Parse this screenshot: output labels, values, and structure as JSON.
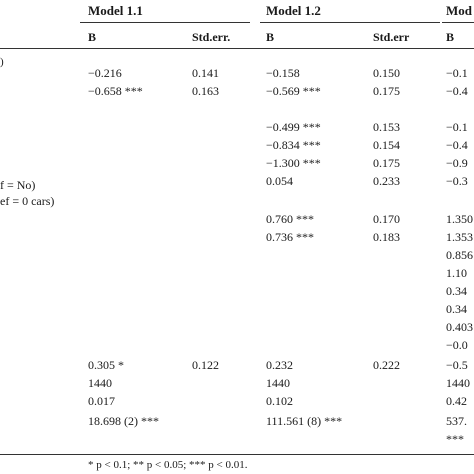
{
  "table": {
    "model_headers": [
      "Model 1.1",
      "Model 1.2",
      "Mod"
    ],
    "sub_headers": [
      "B",
      "Std.err.",
      "B",
      "Std.err",
      "B"
    ],
    "left_labels": [
      "f = No)",
      "ef = 0 cars)"
    ],
    "rows": [
      {
        "b1": "−0.216",
        "se1": "0.141",
        "b2": "−0.158",
        "se2": "0.150",
        "b3": "−0.1"
      },
      {
        "b1": "−0.658 ***",
        "se1": "0.163",
        "b2": "−0.569 ***",
        "se2": "0.175",
        "b3": "−0.4"
      },
      {
        "b1": "",
        "se1": "",
        "b2": "−0.499 ***",
        "se2": "0.153",
        "b3": "−0.1"
      },
      {
        "b1": "",
        "se1": "",
        "b2": "−0.834 ***",
        "se2": "0.154",
        "b3": "−0.4"
      },
      {
        "b1": "",
        "se1": "",
        "b2": "−1.300 ***",
        "se2": "0.175",
        "b3": "−0.9"
      },
      {
        "b1": "",
        "se1": "",
        "b2": "0.054",
        "se2": "0.233",
        "b3": "−0.3"
      },
      {
        "b1": "",
        "se1": "",
        "b2": "0.760 ***",
        "se2": "0.170",
        "b3": "1.350"
      },
      {
        "b1": "",
        "se1": "",
        "b2": "0.736 ***",
        "se2": "0.183",
        "b3": "1.353"
      },
      {
        "b3": "0.856"
      },
      {
        "b3": "1.10"
      },
      {
        "b3": "0.34"
      },
      {
        "b3": "0.34"
      },
      {
        "b3": "0.403"
      },
      {
        "b3": "−0.0"
      },
      {
        "b1": "0.305 *",
        "se1": "0.122",
        "b2": "0.232",
        "se2": "0.222",
        "b3": "−0.5"
      },
      {
        "b1": "1440",
        "b2": "1440",
        "b3": "1440"
      },
      {
        "b1": "0.017",
        "b2": "0.102",
        "b3": "0.42"
      },
      {
        "b1": "18.698 (2) ***",
        "b2": "111.561 (8) ***",
        "b3": "537."
      },
      {
        "b3": "***"
      }
    ],
    "footnote": "* p < 0.1; ** p < 0.05; *** p < 0.01."
  }
}
